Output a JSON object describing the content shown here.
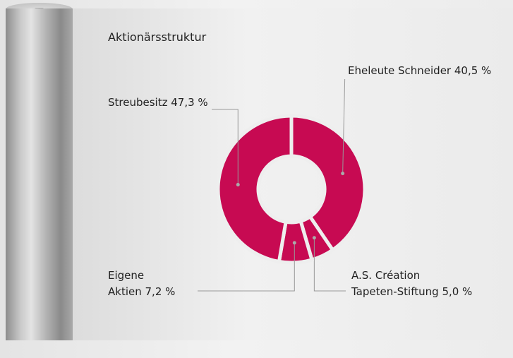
{
  "chart_data": {
    "type": "donut",
    "title": "Aktionärsstruktur",
    "categories": [
      "Eheleute Schneider",
      "A.S. Création\nTapeten-Stiftung",
      "Eigene\nAktien",
      "Streubesitz"
    ],
    "values": [
      40.5,
      5.0,
      7.2,
      47.3
    ],
    "value_labels": [
      "40,5 %",
      "5,0 %",
      "7,2 %",
      "47,3 %"
    ],
    "color": "#c70a52"
  }
}
